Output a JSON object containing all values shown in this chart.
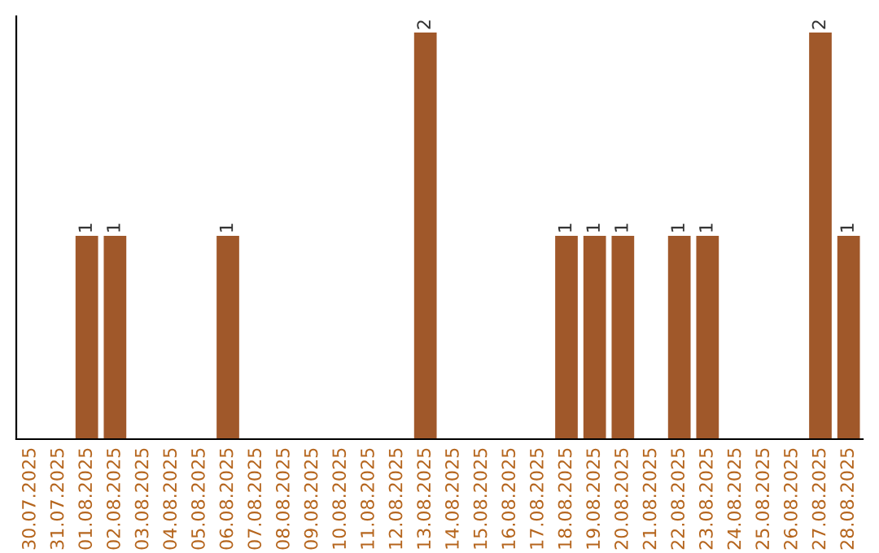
{
  "chart_data": {
    "type": "bar",
    "categories": [
      "30.07.2025",
      "31.07.2025",
      "01.08.2025",
      "02.08.2025",
      "03.08.2025",
      "04.08.2025",
      "05.08.2025",
      "06.08.2025",
      "07.08.2025",
      "08.08.2025",
      "09.08.2025",
      "10.08.2025",
      "11.08.2025",
      "12.08.2025",
      "13.08.2025",
      "14.08.2025",
      "15.08.2025",
      "16.08.2025",
      "17.08.2025",
      "18.08.2025",
      "19.08.2025",
      "20.08.2025",
      "21.08.2025",
      "22.08.2025",
      "23.08.2025",
      "24.08.2025",
      "25.08.2025",
      "26.08.2025",
      "27.08.2025",
      "28.08.2025"
    ],
    "values": [
      0,
      0,
      1,
      1,
      0,
      0,
      0,
      1,
      0,
      0,
      0,
      0,
      0,
      0,
      2,
      0,
      0,
      0,
      0,
      1,
      1,
      1,
      0,
      1,
      1,
      0,
      0,
      0,
      2,
      1
    ],
    "value_labels": [
      null,
      null,
      "1",
      "1",
      null,
      null,
      null,
      "1",
      null,
      null,
      null,
      null,
      null,
      null,
      "2",
      null,
      null,
      null,
      null,
      "1",
      "1",
      "1",
      null,
      "1",
      "1",
      null,
      null,
      null,
      "2",
      "1"
    ],
    "color": "#a0582a",
    "tick_labels": "x",
    "grid": false,
    "legend": false
  }
}
